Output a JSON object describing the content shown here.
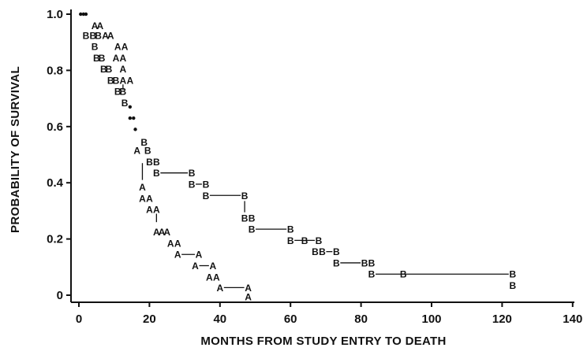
{
  "chart_data": {
    "type": "line",
    "title": "",
    "xlabel": "MONTHS FROM STUDY ENTRY TO DEATH",
    "ylabel": "PROBABILITY OF SURVIVAL",
    "xlim": [
      0,
      140
    ],
    "ylim": [
      0,
      1.0
    ],
    "xticks": [
      0,
      20,
      40,
      60,
      80,
      100,
      120,
      140
    ],
    "yticks": [
      0,
      0.2,
      0.4,
      0.6,
      0.8,
      1.0
    ],
    "xtick_labels": [
      "0",
      "20",
      "40",
      "60",
      "80",
      "100",
      "120",
      "140"
    ],
    "ytick_labels": [
      "0",
      "0.2",
      "0.4",
      "0.6",
      "0.8",
      "1.0"
    ],
    "grid": false,
    "shared_points": [
      {
        "x": 0.5,
        "y": 1.0
      },
      {
        "x": 1.3,
        "y": 1.0
      },
      {
        "x": 2.0,
        "y": 1.0
      },
      {
        "x": 14.5,
        "y": 0.67
      },
      {
        "x": 14.5,
        "y": 0.63
      },
      {
        "x": 15.5,
        "y": 0.63
      },
      {
        "x": 16.0,
        "y": 0.59
      }
    ],
    "series": [
      {
        "name": "A",
        "marker": "A",
        "points": [
          {
            "x": 4.5,
            "y": 0.96
          },
          {
            "x": 6.0,
            "y": 0.96
          },
          {
            "x": 7.5,
            "y": 0.925
          },
          {
            "x": 9.0,
            "y": 0.925
          },
          {
            "x": 11.0,
            "y": 0.885
          },
          {
            "x": 13.0,
            "y": 0.885
          },
          {
            "x": 10.5,
            "y": 0.845
          },
          {
            "x": 12.5,
            "y": 0.845
          },
          {
            "x": 12.5,
            "y": 0.805
          },
          {
            "x": 12.5,
            "y": 0.765
          },
          {
            "x": 14.5,
            "y": 0.765
          },
          {
            "x": 16.5,
            "y": 0.515
          },
          {
            "x": 18.0,
            "y": 0.385
          },
          {
            "x": 18.0,
            "y": 0.345
          },
          {
            "x": 20.0,
            "y": 0.345
          },
          {
            "x": 20.0,
            "y": 0.305
          },
          {
            "x": 22.0,
            "y": 0.305
          },
          {
            "x": 22.0,
            "y": 0.225
          },
          {
            "x": 23.5,
            "y": 0.225
          },
          {
            "x": 25.0,
            "y": 0.225
          },
          {
            "x": 26.0,
            "y": 0.185
          },
          {
            "x": 28.0,
            "y": 0.185
          },
          {
            "x": 28.0,
            "y": 0.145
          },
          {
            "x": 34.0,
            "y": 0.145
          },
          {
            "x": 33.0,
            "y": 0.105
          },
          {
            "x": 38.0,
            "y": 0.105
          },
          {
            "x": 37.0,
            "y": 0.065
          },
          {
            "x": 39.0,
            "y": 0.065
          },
          {
            "x": 40.0,
            "y": 0.027
          },
          {
            "x": 48.0,
            "y": 0.027
          },
          {
            "x": 48.0,
            "y": -0.005
          }
        ],
        "steps": [
          {
            "x1": 28.0,
            "x2": 34.0,
            "y": 0.145
          },
          {
            "x1": 33.0,
            "x2": 38.0,
            "y": 0.105
          },
          {
            "x1": 40.0,
            "x2": 48.0,
            "y": 0.027
          }
        ],
        "drops": [
          {
            "x": 18.0,
            "y1": 0.47,
            "y2": 0.41
          },
          {
            "x": 22.0,
            "y1": 0.29,
            "y2": 0.26
          },
          {
            "x": 12.5,
            "y1": 0.75,
            "y2": 0.73
          }
        ]
      },
      {
        "name": "B",
        "marker": "B",
        "points": [
          {
            "x": 2.0,
            "y": 0.925
          },
          {
            "x": 4.0,
            "y": 0.925
          },
          {
            "x": 5.5,
            "y": 0.925
          },
          {
            "x": 4.5,
            "y": 0.885
          },
          {
            "x": 5.0,
            "y": 0.845
          },
          {
            "x": 6.5,
            "y": 0.845
          },
          {
            "x": 7.0,
            "y": 0.805
          },
          {
            "x": 8.5,
            "y": 0.805
          },
          {
            "x": 9.0,
            "y": 0.765
          },
          {
            "x": 10.5,
            "y": 0.765
          },
          {
            "x": 11.0,
            "y": 0.725
          },
          {
            "x": 12.5,
            "y": 0.725
          },
          {
            "x": 13.0,
            "y": 0.685
          },
          {
            "x": 18.5,
            "y": 0.545
          },
          {
            "x": 19.5,
            "y": 0.515
          },
          {
            "x": 20.0,
            "y": 0.475
          },
          {
            "x": 22.0,
            "y": 0.475
          },
          {
            "x": 22.0,
            "y": 0.435
          },
          {
            "x": 32.0,
            "y": 0.435
          },
          {
            "x": 32.0,
            "y": 0.395
          },
          {
            "x": 36.0,
            "y": 0.395
          },
          {
            "x": 36.0,
            "y": 0.355
          },
          {
            "x": 47.0,
            "y": 0.355
          },
          {
            "x": 47.0,
            "y": 0.275
          },
          {
            "x": 49.0,
            "y": 0.275
          },
          {
            "x": 49.0,
            "y": 0.235
          },
          {
            "x": 60.0,
            "y": 0.235
          },
          {
            "x": 60.0,
            "y": 0.195
          },
          {
            "x": 64.0,
            "y": 0.195
          },
          {
            "x": 68.0,
            "y": 0.195
          },
          {
            "x": 67.0,
            "y": 0.155
          },
          {
            "x": 69.0,
            "y": 0.155
          },
          {
            "x": 73.0,
            "y": 0.155
          },
          {
            "x": 73.0,
            "y": 0.115
          },
          {
            "x": 81.0,
            "y": 0.115
          },
          {
            "x": 83.0,
            "y": 0.115
          },
          {
            "x": 83.0,
            "y": 0.075
          },
          {
            "x": 92.0,
            "y": 0.075
          },
          {
            "x": 123.0,
            "y": 0.075
          },
          {
            "x": 123.0,
            "y": 0.035
          }
        ],
        "steps": [
          {
            "x1": 22.0,
            "x2": 32.0,
            "y": 0.435
          },
          {
            "x1": 32.0,
            "x2": 36.0,
            "y": 0.395
          },
          {
            "x1": 36.0,
            "x2": 47.0,
            "y": 0.355
          },
          {
            "x1": 49.0,
            "x2": 60.0,
            "y": 0.235
          },
          {
            "x1": 60.0,
            "x2": 68.0,
            "y": 0.195
          },
          {
            "x1": 69.0,
            "x2": 73.0,
            "y": 0.155
          },
          {
            "x1": 73.0,
            "x2": 81.0,
            "y": 0.115
          },
          {
            "x1": 83.0,
            "x2": 123.0,
            "y": 0.075
          }
        ],
        "drops": [
          {
            "x": 47.0,
            "y1": 0.335,
            "y2": 0.295
          }
        ]
      }
    ]
  }
}
